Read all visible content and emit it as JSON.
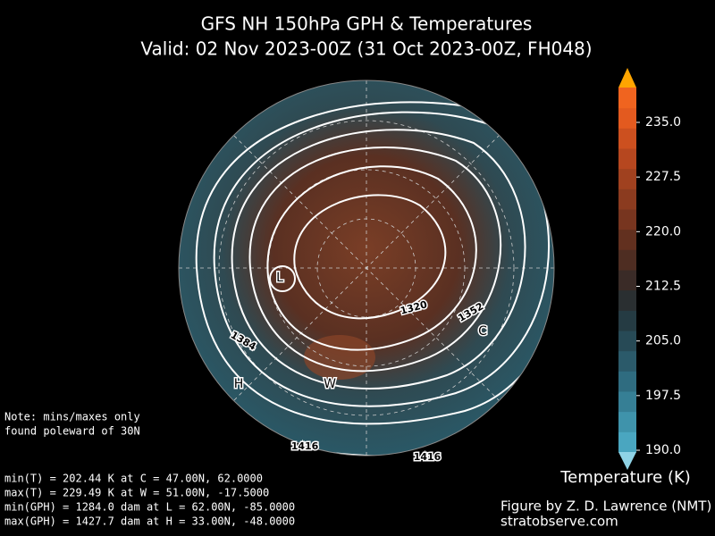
{
  "header": {
    "title": "GFS NH 150hPa GPH & Temperatures",
    "subtitle": "Valid: 02 Nov 2023-00Z  (31 Oct 2023-00Z, FH048)"
  },
  "map": {
    "contour_labels": [
      "1320",
      "1352",
      "1384",
      "1416",
      "1416"
    ],
    "markers": [
      "L",
      "H",
      "W",
      "C"
    ]
  },
  "colorbar": {
    "label": "Temperature (K)",
    "ticks": [
      "235.0",
      "227.5",
      "220.0",
      "212.5",
      "205.0",
      "197.5",
      "190.0"
    ]
  },
  "notes": [
    "Note: mins/maxes only",
    "found poleward of 30N"
  ],
  "stats": [
    "min(T) = 202.44 K at C = 47.00N,   62.0000",
    "max(T) = 229.49 K at W = 51.00N,  -17.5000",
    "min(GPH) = 1284.0 dam at L = 62.00N,  -85.0000",
    "max(GPH) = 1427.7 dam at H = 33.00N,  -48.0000"
  ],
  "credits": [
    "Figure by Z. D. Lawrence (NMT)",
    "stratobserve.com"
  ]
}
